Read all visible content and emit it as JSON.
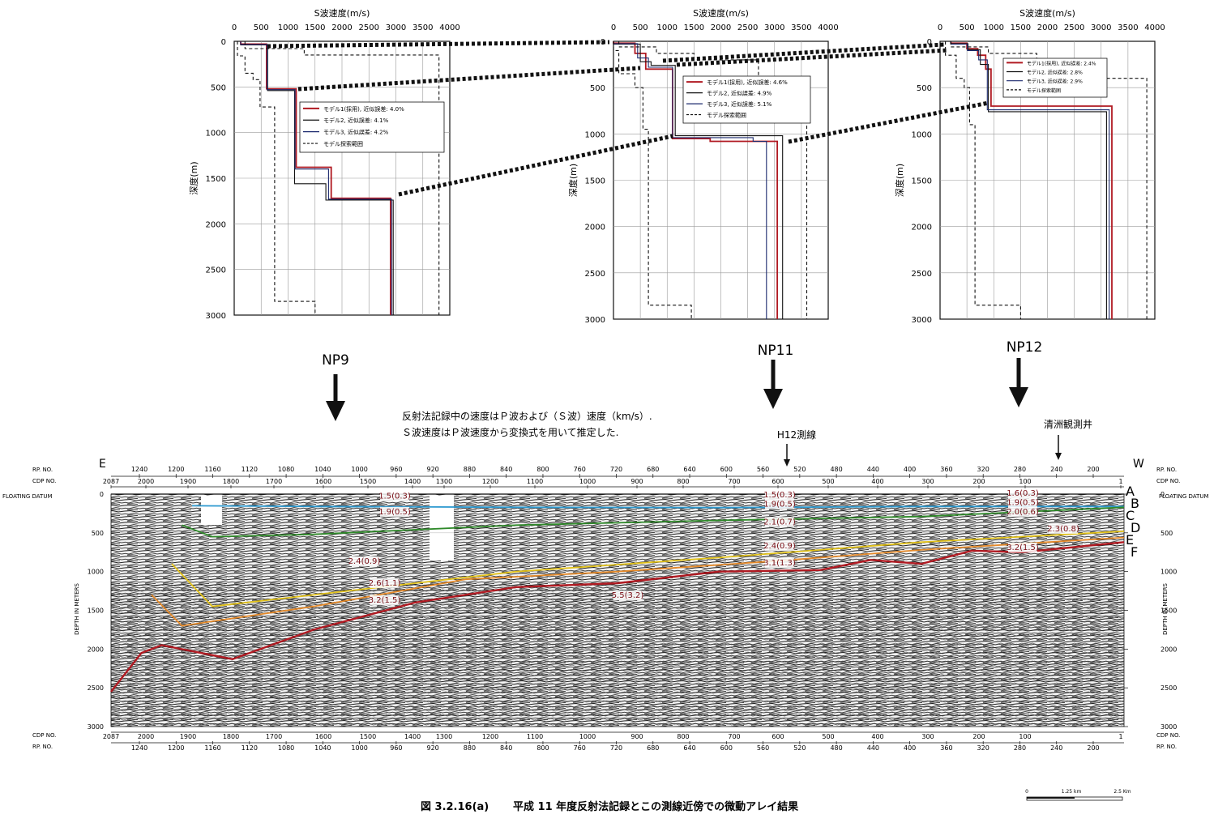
{
  "figure": {
    "caption_number": "図 3.2.16(a)",
    "caption_text": "平成 11 年度反射法記録とこの測線近傍での微動アレイ結果",
    "scale_bar": {
      "labels": [
        "0",
        "1.25 km",
        "2.5 Km"
      ]
    }
  },
  "colors": {
    "model1": "#b01a22",
    "model2": "#111111",
    "model3": "#1c2a6e",
    "horizon_b": "#2e9ad0",
    "horizon_c": "#2f8a2a",
    "horizon_d": "#e2c21a",
    "horizon_e": "#e58a2a",
    "horizon_f": "#b01a22"
  },
  "panel_common": {
    "x_title": "S波速度(m/s)",
    "y_title": "深度(m)",
    "x_ticks": [
      0,
      500,
      1000,
      1500,
      2000,
      2500,
      3000,
      3500,
      4000
    ],
    "y_ticks": [
      0,
      500,
      1000,
      1500,
      2000,
      2500,
      3000
    ]
  },
  "chart_data": [
    {
      "type": "line",
      "id": "NP9",
      "xlabel": "S波速度(m/s)",
      "ylabel": "深度(m)",
      "xlim": [
        0,
        4000
      ],
      "ylim": [
        0,
        3000
      ],
      "legend_position": "middle",
      "series": [
        {
          "name": "モデル1(採用), 近似誤差: 4.0%",
          "style": "solid",
          "color": "model1",
          "points": [
            [
              120,
              0
            ],
            [
              120,
              30
            ],
            [
              600,
              30
            ],
            [
              600,
              520
            ],
            [
              1150,
              520
            ],
            [
              1150,
              1380
            ],
            [
              1800,
              1380
            ],
            [
              1800,
              1720
            ],
            [
              2900,
              1720
            ],
            [
              2900,
              3000
            ]
          ]
        },
        {
          "name": "モデル2, 近似誤差: 4.1%",
          "style": "solid",
          "color": "model2",
          "points": [
            [
              120,
              0
            ],
            [
              120,
              40
            ],
            [
              620,
              40
            ],
            [
              620,
              540
            ],
            [
              1120,
              540
            ],
            [
              1120,
              1560
            ],
            [
              1700,
              1560
            ],
            [
              1700,
              1740
            ],
            [
              2950,
              1740
            ],
            [
              2950,
              3000
            ]
          ]
        },
        {
          "name": "モデル3, 近似誤差: 4.2%",
          "style": "solid",
          "color": "model3",
          "points": [
            [
              120,
              0
            ],
            [
              120,
              35
            ],
            [
              610,
              35
            ],
            [
              610,
              530
            ],
            [
              1130,
              530
            ],
            [
              1130,
              1400
            ],
            [
              1750,
              1400
            ],
            [
              1750,
              1730
            ],
            [
              2920,
              1730
            ],
            [
              2920,
              3000
            ]
          ]
        },
        {
          "name": "モデル探索範囲",
          "style": "dashed",
          "color": "model2",
          "points": [
            [
              60,
              0
            ],
            [
              60,
              160
            ],
            [
              200,
              160
            ],
            [
              200,
              350
            ],
            [
              350,
              350
            ],
            [
              350,
              420
            ],
            [
              480,
              420
            ],
            [
              480,
              720
            ],
            [
              750,
              720
            ],
            [
              750,
              2850
            ],
            [
              1500,
              2850
            ],
            [
              1500,
              3000
            ]
          ]
        },
        {
          "name": "",
          "style": "dashed",
          "color": "model2",
          "points": [
            [
              200,
              0
            ],
            [
              200,
              80
            ],
            [
              1300,
              80
            ],
            [
              1300,
              150
            ],
            [
              3800,
              150
            ],
            [
              3800,
              3000
            ]
          ]
        }
      ]
    },
    {
      "type": "line",
      "id": "NP11",
      "xlabel": "S波速度(m/s)",
      "ylabel": "深度(m)",
      "xlim": [
        0,
        4000
      ],
      "ylim": [
        0,
        3000
      ],
      "legend_position": "top-right",
      "series": [
        {
          "name": "モデル1(採用), 近似誤差: 4.6%",
          "style": "solid",
          "color": "model1",
          "points": [
            [
              0,
              0
            ],
            [
              0,
              20
            ],
            [
              400,
              20
            ],
            [
              400,
              130
            ],
            [
              600,
              130
            ],
            [
              600,
              300
            ],
            [
              1100,
              300
            ],
            [
              1100,
              1050
            ],
            [
              1800,
              1050
            ],
            [
              1800,
              1080
            ],
            [
              3050,
              1080
            ],
            [
              3050,
              3000
            ]
          ]
        },
        {
          "name": "モデル2, 近似誤差: 4.9%",
          "style": "solid",
          "color": "model2",
          "points": [
            [
              0,
              0
            ],
            [
              0,
              30
            ],
            [
              500,
              30
            ],
            [
              500,
              220
            ],
            [
              700,
              220
            ],
            [
              700,
              260
            ],
            [
              1150,
              260
            ],
            [
              1150,
              1020
            ],
            [
              3150,
              1020
            ],
            [
              3150,
              3000
            ]
          ]
        },
        {
          "name": "モデル3, 近似誤差: 5.1%",
          "style": "solid",
          "color": "model3",
          "points": [
            [
              0,
              0
            ],
            [
              0,
              25
            ],
            [
              450,
              25
            ],
            [
              450,
              180
            ],
            [
              650,
              180
            ],
            [
              650,
              280
            ],
            [
              1100,
              280
            ],
            [
              1100,
              1040
            ],
            [
              2600,
              1040
            ],
            [
              2600,
              1080
            ],
            [
              2850,
              1080
            ],
            [
              2850,
              3000
            ]
          ]
        },
        {
          "name": "モデル探索範囲",
          "style": "dashed",
          "color": "model2",
          "points": [
            [
              0,
              0
            ],
            [
              0,
              100
            ],
            [
              100,
              100
            ],
            [
              100,
              350
            ],
            [
              400,
              350
            ],
            [
              400,
              500
            ],
            [
              550,
              500
            ],
            [
              550,
              950
            ],
            [
              650,
              950
            ],
            [
              650,
              2850
            ],
            [
              1450,
              2850
            ],
            [
              1450,
              3000
            ]
          ]
        },
        {
          "name": "",
          "style": "dashed",
          "color": "model2",
          "points": [
            [
              100,
              0
            ],
            [
              100,
              60
            ],
            [
              800,
              60
            ],
            [
              800,
              130
            ],
            [
              1500,
              130
            ],
            [
              1500,
              200
            ],
            [
              2700,
              200
            ],
            [
              2700,
              400
            ],
            [
              3600,
              400
            ],
            [
              3600,
              3000
            ]
          ]
        }
      ]
    },
    {
      "type": "line",
      "id": "NP12",
      "xlabel": "S波速度(m/s)",
      "ylabel": "深度(m)",
      "xlim": [
        0,
        4000
      ],
      "ylim": [
        0,
        3000
      ],
      "legend_position": "top-right",
      "series": [
        {
          "name": "モデル1(採用), 近似誤差: 2.4%",
          "style": "solid",
          "color": "model1",
          "points": [
            [
              200,
              0
            ],
            [
              200,
              20
            ],
            [
              500,
              20
            ],
            [
              500,
              80
            ],
            [
              700,
              80
            ],
            [
              700,
              150
            ],
            [
              850,
              150
            ],
            [
              850,
              300
            ],
            [
              950,
              300
            ],
            [
              950,
              700
            ],
            [
              3200,
              700
            ],
            [
              3200,
              3000
            ]
          ]
        },
        {
          "name": "モデル2, 近似誤差: 2.8%",
          "style": "solid",
          "color": "model2",
          "points": [
            [
              200,
              0
            ],
            [
              200,
              25
            ],
            [
              520,
              25
            ],
            [
              520,
              90
            ],
            [
              750,
              90
            ],
            [
              750,
              250
            ],
            [
              900,
              250
            ],
            [
              900,
              760
            ],
            [
              3100,
              760
            ],
            [
              3100,
              3000
            ]
          ]
        },
        {
          "name": "モデル3, 近似誤差: 2.9%",
          "style": "solid",
          "color": "model3",
          "points": [
            [
              200,
              0
            ],
            [
              200,
              30
            ],
            [
              510,
              30
            ],
            [
              510,
              100
            ],
            [
              720,
              100
            ],
            [
              720,
              200
            ],
            [
              880,
              200
            ],
            [
              880,
              740
            ],
            [
              3150,
              740
            ],
            [
              3150,
              3000
            ]
          ]
        },
        {
          "name": "モデル探索範囲",
          "style": "dashed",
          "color": "model2",
          "points": [
            [
              100,
              0
            ],
            [
              100,
              150
            ],
            [
              300,
              150
            ],
            [
              300,
              400
            ],
            [
              450,
              400
            ],
            [
              450,
              500
            ],
            [
              550,
              500
            ],
            [
              550,
              900
            ],
            [
              650,
              900
            ],
            [
              650,
              2850
            ],
            [
              1500,
              2850
            ],
            [
              1500,
              3000
            ]
          ]
        },
        {
          "name": "",
          "style": "dashed",
          "color": "model2",
          "points": [
            [
              200,
              0
            ],
            [
              200,
              60
            ],
            [
              900,
              60
            ],
            [
              900,
              130
            ],
            [
              1800,
              130
            ],
            [
              1800,
              250
            ],
            [
              2700,
              250
            ],
            [
              2700,
              400
            ],
            [
              3850,
              400
            ],
            [
              3850,
              3000
            ]
          ]
        }
      ]
    },
    {
      "type": "line",
      "id": "reflection_section",
      "kind": "seismic_reflection_profile",
      "note_lines": [
        "反射法記録中の速度はＰ波および（Ｓ波）速度（km/s）.",
        "Ｓ波速度はＰ波速度から変換式を用いて推定した."
      ],
      "station_labels": [
        "NP9",
        "NP11",
        "NP12"
      ],
      "h12_label": "H12測線",
      "well_label": "清洲観測井",
      "end_labels": {
        "left": "E",
        "right": "W"
      },
      "axis_labels": {
        "rp": "RP. NO.",
        "cdp": "CDP NO.",
        "floating_datum": "FLOATING DATUM",
        "depth": "DEPTH IN METERS"
      },
      "rp_ticks": [
        "1240",
        "1200",
        "1160",
        "1120",
        "1080",
        "1040",
        "1000",
        "960",
        "920",
        "880",
        "840",
        "800",
        "760",
        "720",
        "680",
        "640",
        "600",
        "560",
        "520",
        "480",
        "440",
        "400",
        "360",
        "320",
        "280",
        "240",
        "200"
      ],
      "cdp_ticks": [
        "2087",
        "2000",
        "1900",
        "1800",
        "1700",
        "1600",
        "1500",
        "1400",
        "1300",
        "1200",
        "1100",
        "1000",
        "900",
        "800",
        "700",
        "600",
        "500",
        "400",
        "300",
        "200",
        "100",
        "1"
      ],
      "depth_ticks": [
        0,
        500,
        1000,
        1500,
        2000,
        2500,
        3000
      ],
      "horizon_letters": [
        "A",
        "B",
        "C",
        "D",
        "E",
        "F"
      ],
      "xlim": [
        0,
        1
      ],
      "ylim": [
        0,
        3000
      ],
      "horizons": [
        {
          "name": "B",
          "color": "horizon_b",
          "x": [
            0.08,
            0.2,
            0.4,
            0.6,
            0.8,
            1.0
          ],
          "depth": [
            150,
            160,
            170,
            175,
            160,
            160
          ]
        },
        {
          "name": "C",
          "color": "horizon_c",
          "x": [
            0.07,
            0.1,
            0.2,
            0.4,
            0.6,
            0.8,
            1.0
          ],
          "depth": [
            400,
            550,
            520,
            400,
            340,
            290,
            170
          ]
        },
        {
          "name": "D",
          "color": "horizon_d",
          "x": [
            0.06,
            0.1,
            0.2,
            0.4,
            0.6,
            0.8,
            1.0
          ],
          "depth": [
            900,
            1450,
            1300,
            1000,
            820,
            620,
            480
          ]
        },
        {
          "name": "E",
          "color": "horizon_e",
          "x": [
            0.04,
            0.07,
            0.2,
            0.35,
            0.5,
            0.65,
            0.8,
            0.9,
            1.0
          ],
          "depth": [
            1300,
            1700,
            1450,
            1100,
            1000,
            870,
            720,
            640,
            560
          ]
        },
        {
          "name": "F",
          "color": "horizon_f",
          "x": [
            0.0,
            0.03,
            0.05,
            0.12,
            0.2,
            0.3,
            0.4,
            0.5,
            0.6,
            0.7,
            0.75,
            0.8,
            0.85,
            0.9,
            1.0
          ],
          "depth": [
            2550,
            2050,
            1950,
            2130,
            1750,
            1400,
            1200,
            1150,
            1000,
            980,
            850,
            900,
            730,
            750,
            620
          ]
        }
      ],
      "velocity_labels": [
        {
          "text": "1.5(0.3)",
          "x": 0.28,
          "depth": 60
        },
        {
          "text": "1.9(0.5)",
          "x": 0.28,
          "depth": 260
        },
        {
          "text": "2.4(0.9)",
          "x": 0.25,
          "depth": 900
        },
        {
          "text": "2.6(1.1)",
          "x": 0.27,
          "depth": 1180
        },
        {
          "text": "3.2(1.5)",
          "x": 0.27,
          "depth": 1400
        },
        {
          "text": "5.5(3.2)",
          "x": 0.51,
          "depth": 1340
        },
        {
          "text": "1.5(0.3)",
          "x": 0.66,
          "depth": 40
        },
        {
          "text": "1.9(0.5)",
          "x": 0.66,
          "depth": 160
        },
        {
          "text": "2.1(0.7)",
          "x": 0.66,
          "depth": 390
        },
        {
          "text": "2.4(0.9)",
          "x": 0.66,
          "depth": 700
        },
        {
          "text": "3.1(1.3)",
          "x": 0.66,
          "depth": 920
        },
        {
          "text": "1.6(0.3)",
          "x": 0.9,
          "depth": 20
        },
        {
          "text": "1.9(0.5)",
          "x": 0.9,
          "depth": 140
        },
        {
          "text": "2.0(0.6)",
          "x": 0.9,
          "depth": 260
        },
        {
          "text": "2.3(0.8)",
          "x": 0.94,
          "depth": 480
        },
        {
          "text": "3.2(1.5)",
          "x": 0.9,
          "depth": 720
        }
      ]
    }
  ]
}
